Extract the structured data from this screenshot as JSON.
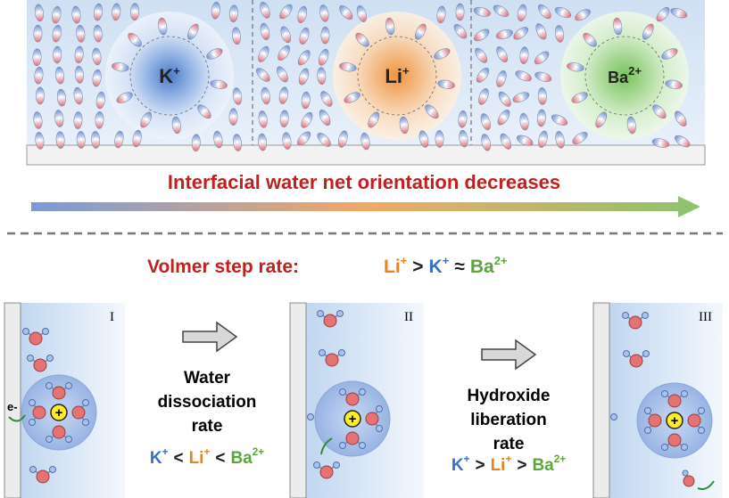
{
  "top_panel": {
    "ions": [
      {
        "ion": "K",
        "charge": "+"
      },
      {
        "ion": "Li",
        "charge": "+"
      },
      {
        "ion": "Ba",
        "charge": "2+"
      }
    ],
    "arrow_label": "Interfacial water net orientation decreases"
  },
  "volmer": {
    "label": "Volmer step rate:",
    "order": [
      {
        "ion": "Li",
        "charge": "+"
      },
      {
        "op": ">"
      },
      {
        "ion": "K",
        "charge": "+"
      },
      {
        "op": "≈"
      },
      {
        "ion": "Ba",
        "charge": "2+"
      }
    ]
  },
  "steps": [
    {
      "label": "I"
    },
    {
      "label": "II"
    },
    {
      "label": "III"
    }
  ],
  "electron": "e-",
  "cation_charge": "+",
  "transitions": [
    {
      "label": [
        "Water",
        "dissociation",
        "rate"
      ],
      "order": [
        {
          "ion": "K",
          "charge": "+"
        },
        {
          "op": "<"
        },
        {
          "ion": "Li",
          "charge": "+"
        },
        {
          "op": "<"
        },
        {
          "ion": "Ba",
          "charge": "2+"
        }
      ]
    },
    {
      "label": [
        "Hydroxide",
        "liberation",
        "rate"
      ],
      "order": [
        {
          "ion": "K",
          "charge": "+"
        },
        {
          "op": ">"
        },
        {
          "ion": "Li",
          "charge": "+"
        },
        {
          "op": ">"
        },
        {
          "ion": "Ba",
          "charge": "2+"
        }
      ]
    }
  ]
}
